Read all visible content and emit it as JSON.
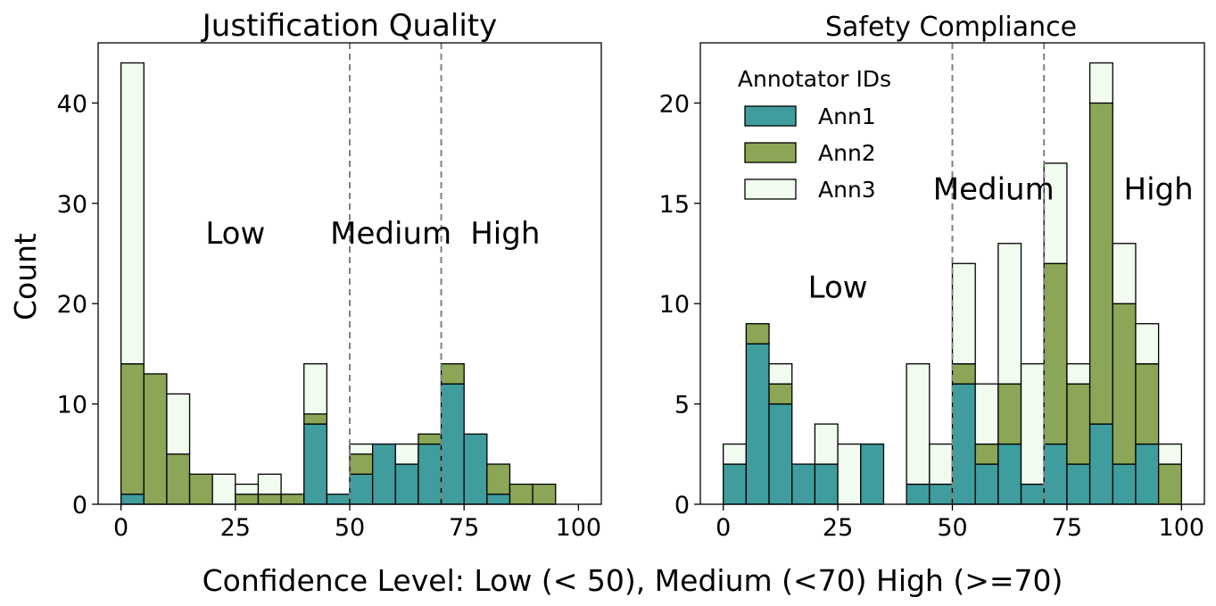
{
  "figure": {
    "ylabel": "Count",
    "xlabel": "Confidence Level: Low (< 50), Medium (<70) High (>=70)"
  },
  "colors": {
    "Ann1": "#3f9d9d",
    "Ann2": "#8aa656",
    "Ann3": "#f2fbf0",
    "edge": "#000000",
    "threshold_line": "#808080"
  },
  "chart_data": [
    {
      "type": "bar",
      "stacked": true,
      "title": "Justification Quality",
      "xlabel": "",
      "ylabel": "Count",
      "bin_width": 5,
      "xlim": [
        -5,
        105
      ],
      "ylim": [
        0,
        46
      ],
      "xticks": [
        0,
        25,
        50,
        75,
        100
      ],
      "yticks": [
        0,
        10,
        20,
        30,
        40
      ],
      "bins": [
        0,
        5,
        10,
        15,
        20,
        25,
        30,
        35,
        40,
        45,
        50,
        55,
        60,
        65,
        70,
        75,
        80,
        85,
        90,
        95
      ],
      "series": [
        {
          "name": "Ann1",
          "values": [
            1,
            0,
            0,
            0,
            0,
            0,
            0,
            0,
            8,
            1,
            3,
            6,
            4,
            6,
            12,
            7,
            1,
            0,
            0,
            0
          ]
        },
        {
          "name": "Ann2",
          "values": [
            13,
            13,
            5,
            3,
            0,
            1,
            1,
            1,
            1,
            0,
            2,
            0,
            0,
            1,
            2,
            0,
            3,
            2,
            2,
            0
          ]
        },
        {
          "name": "Ann3",
          "values": [
            30,
            0,
            6,
            0,
            3,
            1,
            2,
            0,
            5,
            0,
            1,
            0,
            2,
            0,
            0,
            0,
            0,
            0,
            0,
            0
          ]
        }
      ],
      "thresholds": [
        50,
        70
      ],
      "annotations": [
        {
          "text": "Low",
          "x": 25,
          "y": 26
        },
        {
          "text": "Medium",
          "x": 59,
          "y": 26
        },
        {
          "text": "High",
          "x": 84,
          "y": 26
        }
      ]
    },
    {
      "type": "bar",
      "stacked": true,
      "title": "Safety Compliance",
      "xlabel": "",
      "ylabel": "",
      "bin_width": 5,
      "xlim": [
        -5,
        105
      ],
      "ylim": [
        0,
        23
      ],
      "xticks": [
        0,
        25,
        50,
        75,
        100
      ],
      "yticks": [
        0,
        5,
        10,
        15,
        20
      ],
      "bins": [
        0,
        5,
        10,
        15,
        20,
        25,
        30,
        35,
        40,
        45,
        50,
        55,
        60,
        65,
        70,
        75,
        80,
        85,
        90,
        95
      ],
      "series": [
        {
          "name": "Ann1",
          "values": [
            2,
            8,
            5,
            2,
            2,
            0,
            3,
            0,
            1,
            1,
            6,
            2,
            3,
            1,
            3,
            2,
            4,
            2,
            3,
            0
          ]
        },
        {
          "name": "Ann2",
          "values": [
            0,
            1,
            1,
            0,
            0,
            0,
            0,
            0,
            0,
            0,
            1,
            1,
            3,
            0,
            9,
            4,
            16,
            8,
            4,
            2
          ]
        },
        {
          "name": "Ann3",
          "values": [
            1,
            0,
            1,
            0,
            2,
            3,
            0,
            0,
            6,
            2,
            5,
            3,
            7,
            6,
            5,
            1,
            2,
            3,
            2,
            1
          ]
        }
      ],
      "thresholds": [
        50,
        70
      ],
      "annotations": [
        {
          "text": "Low",
          "x": 25,
          "y": 10.3
        },
        {
          "text": "Medium",
          "x": 59,
          "y": 15.2
        },
        {
          "text": "High",
          "x": 95,
          "y": 15.2
        }
      ],
      "legend": {
        "title": "Annotator IDs",
        "entries": [
          "Ann1",
          "Ann2",
          "Ann3"
        ],
        "position": "upper-left"
      }
    }
  ]
}
